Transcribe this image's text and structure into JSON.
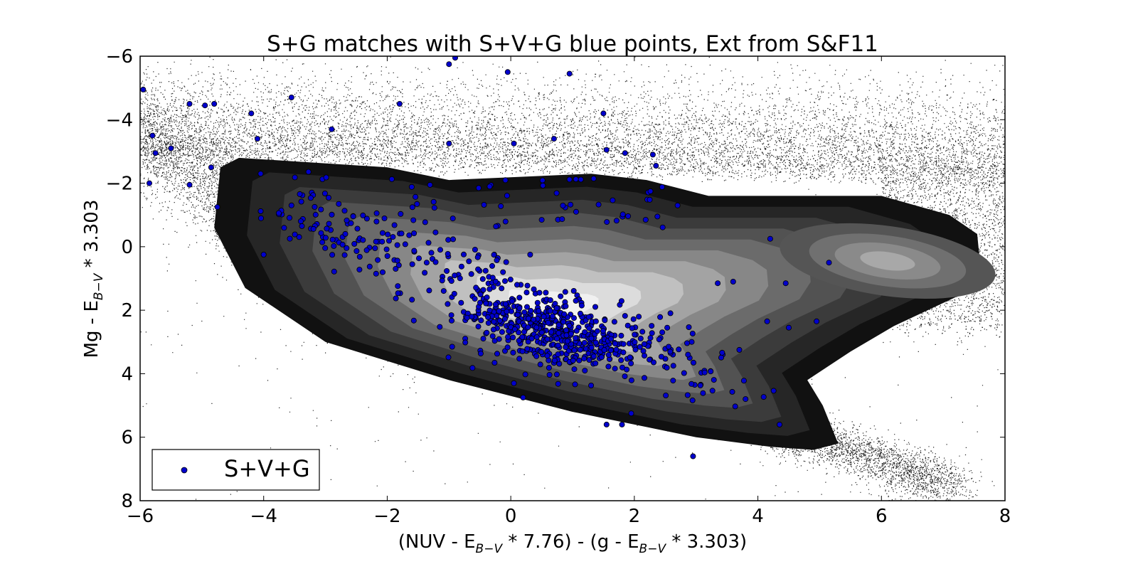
{
  "chart_data": {
    "type": "scatter",
    "title": "S+G matches with S+V+G blue points, Ext from S&F11",
    "xlabel_parts": [
      "(NUV - E",
      "B−V",
      " * 7.76) - (g - E",
      "B−V",
      " * 3.303)"
    ],
    "ylabel_parts": [
      "Mg - E",
      "B−V",
      " * 3.303"
    ],
    "xlim": [
      -6,
      8
    ],
    "ylim": [
      8,
      -6
    ],
    "y_inverted": true,
    "xticks": [
      -6,
      -4,
      -2,
      0,
      2,
      4,
      6,
      8
    ],
    "xtick_labels": [
      "−6",
      "−4",
      "−2",
      "0",
      "2",
      "4",
      "6",
      "8"
    ],
    "yticks": [
      -6,
      -4,
      -2,
      0,
      2,
      4,
      6,
      8
    ],
    "ytick_labels": [
      "−6",
      "−4",
      "−2",
      "0",
      "2",
      "4",
      "6",
      "8"
    ],
    "grid": false,
    "legend": {
      "position": "lower-left",
      "entries": [
        {
          "label": "S+V+G",
          "color": "#0000cc"
        }
      ]
    },
    "density_background": {
      "description": "S+G matches, small black dots with filled grayscale density contours",
      "outer_contour_levels": 9,
      "fill_colors": [
        "#111111",
        "#262626",
        "#3b3b3b",
        "#525252",
        "#6b6b6b",
        "#878787",
        "#a3a3a3",
        "#c0c0c0",
        "#dcdcdc",
        "#f0f0f0"
      ]
    },
    "series": [
      {
        "name": "S+V+G",
        "marker": "circle",
        "color": "#0000cc",
        "edge_color": "#000000",
        "highlighted_points": [
          [
            -5.95,
            -4.95
          ],
          [
            -5.8,
            -3.5
          ],
          [
            -5.75,
            -2.95
          ],
          [
            -5.85,
            -2.0
          ],
          [
            -5.5,
            -3.1
          ],
          [
            -5.2,
            -4.5
          ],
          [
            -4.95,
            -4.45
          ],
          [
            -4.8,
            -4.5
          ],
          [
            -5.2,
            -1.95
          ],
          [
            -4.85,
            -2.5
          ],
          [
            -4.75,
            -1.25
          ],
          [
            -4.2,
            -4.2
          ],
          [
            -4.1,
            -3.4
          ],
          [
            -4.05,
            -2.3
          ],
          [
            -4.0,
            0.25
          ],
          [
            -3.55,
            -4.7
          ],
          [
            -2.9,
            -3.7
          ],
          [
            -1.8,
            -4.5
          ],
          [
            -1.0,
            -5.75
          ],
          [
            -0.9,
            -5.95
          ],
          [
            -1.0,
            -3.25
          ],
          [
            -0.05,
            -5.5
          ],
          [
            0.05,
            -3.25
          ],
          [
            0.95,
            -5.45
          ],
          [
            0.7,
            -3.4
          ],
          [
            1.5,
            -4.2
          ],
          [
            1.55,
            -3.05
          ],
          [
            1.85,
            -2.95
          ],
          [
            2.3,
            -2.9
          ],
          [
            2.35,
            -2.55
          ],
          [
            2.7,
            -1.3
          ],
          [
            4.2,
            -0.25
          ],
          [
            5.15,
            0.5
          ],
          [
            4.45,
            1.15
          ],
          [
            4.15,
            2.35
          ],
          [
            4.5,
            2.55
          ],
          [
            4.95,
            2.35
          ],
          [
            4.35,
            5.6
          ],
          [
            2.95,
            6.6
          ],
          [
            1.55,
            5.6
          ],
          [
            1.8,
            5.6
          ],
          [
            0.05,
            4.3
          ],
          [
            0.2,
            4.75
          ],
          [
            1.95,
            5.25
          ],
          [
            3.8,
            4.8
          ],
          [
            3.7,
            3.25
          ],
          [
            3.35,
            1.15
          ],
          [
            3.6,
            1.1
          ]
        ]
      }
    ]
  }
}
